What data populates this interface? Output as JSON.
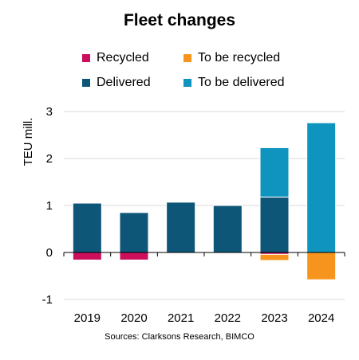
{
  "chart_data": {
    "type": "bar",
    "title": "Fleet changes",
    "ylabel": "TEU mill.",
    "xlabel": "",
    "source": "Sources: Clarksons Research, BIMCO",
    "categories": [
      "2019",
      "2020",
      "2021",
      "2022",
      "2023",
      "2024"
    ],
    "yticks": [
      "3",
      "2",
      "1",
      "0",
      "-1"
    ],
    "ytick_values": [
      3,
      2,
      1,
      0,
      -1
    ],
    "ylim": [
      -1,
      3
    ],
    "grid": true,
    "stacked": true,
    "legend_position": "top",
    "series": [
      {
        "name": "Recycled",
        "color": "#cc0e5c",
        "values": [
          -0.16,
          -0.16,
          0,
          0,
          -0.04,
          0
        ]
      },
      {
        "name": "To be recycled",
        "color": "#f7941d",
        "values": [
          0,
          0,
          0,
          0,
          -0.13,
          -0.58
        ]
      },
      {
        "name": "Delivered",
        "color": "#0d5677",
        "values": [
          1.05,
          0.85,
          1.07,
          1.0,
          1.18,
          0
        ]
      },
      {
        "name": "To be delivered",
        "color": "#0f93bf",
        "values": [
          0,
          0,
          0,
          0,
          1.05,
          2.76
        ]
      }
    ]
  }
}
